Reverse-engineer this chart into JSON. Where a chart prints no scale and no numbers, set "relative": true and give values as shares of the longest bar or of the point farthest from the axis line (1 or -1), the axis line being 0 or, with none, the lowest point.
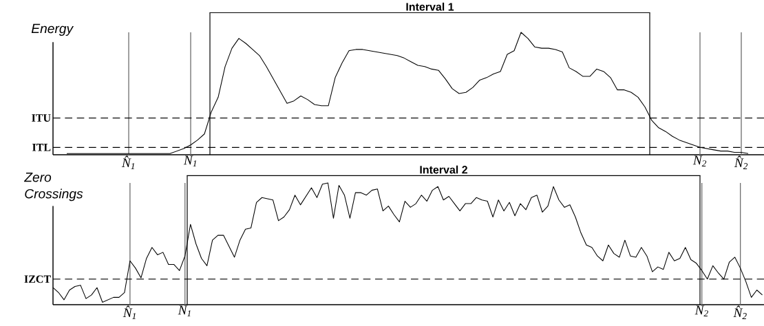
{
  "chart_data": [
    {
      "type": "line",
      "relative": true,
      "ylabel": "Energy",
      "grid": "x",
      "annotations": [
        "Interval 1"
      ],
      "categories": [
        null,
        null,
        null,
        null,
        null,
        null,
        null,
        null,
        null,
        null,
        null,
        "N̂$_{1}$",
        null,
        null,
        null,
        null,
        null,
        null,
        null,
        null,
        "N$_{1}$",
        null,
        null,
        null,
        null,
        null,
        null,
        null,
        null,
        null,
        null,
        null,
        null,
        null,
        null,
        null,
        null,
        null,
        null,
        null,
        null,
        null,
        null,
        null,
        null,
        null,
        null,
        null,
        null,
        null,
        null,
        null,
        null,
        null,
        null,
        null,
        null,
        null,
        null,
        null,
        null,
        null,
        null,
        null,
        null,
        null,
        null,
        null,
        null,
        null,
        null,
        null,
        null,
        null,
        null,
        null,
        null,
        null,
        null,
        null,
        null,
        null,
        null,
        null,
        null,
        null,
        null,
        null,
        null,
        null,
        null,
        null,
        null,
        null,
        "N$_{2}$",
        null,
        null,
        null,
        null,
        null,
        "N̂$_{2}$",
        null,
        null,
        null
      ],
      "series": [
        {
          "color": "#000000",
          "values": [
            null,
            null,
            0.01,
            0.01,
            0.01,
            0.01,
            0.01,
            0.01,
            0.01,
            0.01,
            0.01,
            0.01,
            0.01,
            0.01,
            0.01,
            0.01,
            0.01,
            0.01,
            0.03,
            0.05,
            0.08,
            0.12,
            0.17,
            0.35,
            0.47,
            0.72,
            0.87,
            0.95,
            0.91,
            0.86,
            0.81,
            0.72,
            0.62,
            0.52,
            0.42,
            0.44,
            0.48,
            0.45,
            0.41,
            0.4,
            0.4,
            0.63,
            0.75,
            0.85,
            0.86,
            0.86,
            0.85,
            0.84,
            0.83,
            0.82,
            0.81,
            0.79,
            0.76,
            0.73,
            0.72,
            0.7,
            0.69,
            0.62,
            0.54,
            0.5,
            0.51,
            0.55,
            0.61,
            0.63,
            0.66,
            0.68,
            0.82,
            0.85,
            1.0,
            0.95,
            0.88,
            0.87,
            0.87,
            0.86,
            0.84,
            0.71,
            0.68,
            0.64,
            0.64,
            0.7,
            0.68,
            0.63,
            0.53,
            0.53,
            0.51,
            0.47,
            0.39,
            0.28,
            0.22,
            0.19,
            0.15,
            0.12,
            0.1,
            0.08,
            0.06,
            0.05,
            0.04,
            0.03,
            0.03,
            0.02,
            0.02,
            0.01,
            null,
            null
          ]
        }
      ],
      "ref_lines": [
        {
          "axis": "y",
          "value": 0.3,
          "label": "ITU",
          "line_style": "dashed",
          "color": "#000000"
        },
        {
          "axis": "y",
          "value": 0.06,
          "label": "ITL",
          "line_style": "dashed",
          "color": "#000000"
        }
      ]
    },
    {
      "type": "line",
      "relative": true,
      "ylabel": "Zero Crossings",
      "grid": "x",
      "annotations": [
        "Interval 2"
      ],
      "categories": [
        null,
        null,
        null,
        null,
        null,
        null,
        null,
        null,
        null,
        null,
        null,
        null,
        null,
        null,
        "N̂$_{1}$",
        null,
        null,
        null,
        null,
        null,
        null,
        null,
        null,
        null,
        "N$_{1}$",
        null,
        null,
        null,
        null,
        null,
        null,
        null,
        null,
        null,
        null,
        null,
        null,
        null,
        null,
        null,
        null,
        null,
        null,
        null,
        null,
        null,
        null,
        null,
        null,
        null,
        null,
        null,
        null,
        null,
        null,
        null,
        null,
        null,
        null,
        null,
        null,
        null,
        null,
        null,
        null,
        null,
        null,
        null,
        null,
        null,
        null,
        null,
        null,
        null,
        null,
        null,
        null,
        null,
        null,
        null,
        null,
        null,
        null,
        null,
        null,
        null,
        null,
        null,
        null,
        null,
        null,
        null,
        null,
        null,
        null,
        null,
        null,
        null,
        null,
        null,
        null,
        null,
        null,
        null,
        null,
        null,
        null,
        null,
        null,
        null,
        null,
        null,
        null,
        null,
        null,
        null,
        null,
        null,
        "N$_{2}$",
        null,
        null,
        null,
        null,
        null,
        null,
        "N̂$_{2}$",
        null,
        null,
        null,
        null
      ],
      "series": [
        {
          "color": "#000000",
          "values": [
            0.14,
            0.1,
            0.04,
            0.12,
            0.15,
            0.16,
            0.05,
            0.08,
            0.14,
            0.02,
            0.04,
            0.06,
            0.06,
            0.1,
            0.36,
            0.3,
            0.22,
            0.38,
            0.47,
            0.41,
            0.43,
            0.33,
            0.33,
            0.28,
            0.4,
            0.66,
            0.5,
            0.38,
            0.32,
            0.53,
            0.57,
            0.57,
            0.48,
            0.39,
            0.53,
            0.62,
            0.63,
            0.84,
            0.88,
            0.87,
            0.86,
            0.69,
            0.72,
            0.78,
            0.9,
            0.82,
            0.89,
            0.96,
            0.88,
            0.99,
            1.0,
            0.71,
            0.98,
            0.9,
            0.71,
            0.92,
            0.92,
            0.9,
            0.94,
            0.95,
            0.77,
            0.81,
            0.74,
            0.68,
            0.85,
            0.8,
            0.83,
            0.9,
            0.85,
            0.94,
            0.97,
            0.86,
            0.89,
            0.83,
            0.77,
            0.83,
            0.83,
            0.88,
            0.86,
            0.85,
            0.72,
            0.86,
            0.77,
            0.84,
            0.73,
            0.83,
            0.78,
            0.88,
            0.9,
            0.76,
            0.81,
            0.97,
            0.86,
            0.8,
            0.82,
            0.72,
            0.59,
            0.49,
            0.47,
            0.4,
            0.36,
            0.49,
            0.42,
            0.39,
            0.53,
            0.4,
            0.39,
            0.47,
            0.4,
            0.27,
            0.31,
            0.29,
            0.43,
            0.36,
            0.38,
            0.47,
            0.37,
            0.34,
            0.28,
            0.21,
            0.32,
            0.26,
            0.21,
            0.35,
            0.39,
            0.3,
            0.19,
            0.06,
            0.12,
            0.08
          ]
        }
      ],
      "ref_lines": [
        {
          "axis": "y",
          "value": 0.21,
          "label": "IZCT",
          "line_style": "dashed",
          "color": "#000000"
        }
      ]
    }
  ]
}
